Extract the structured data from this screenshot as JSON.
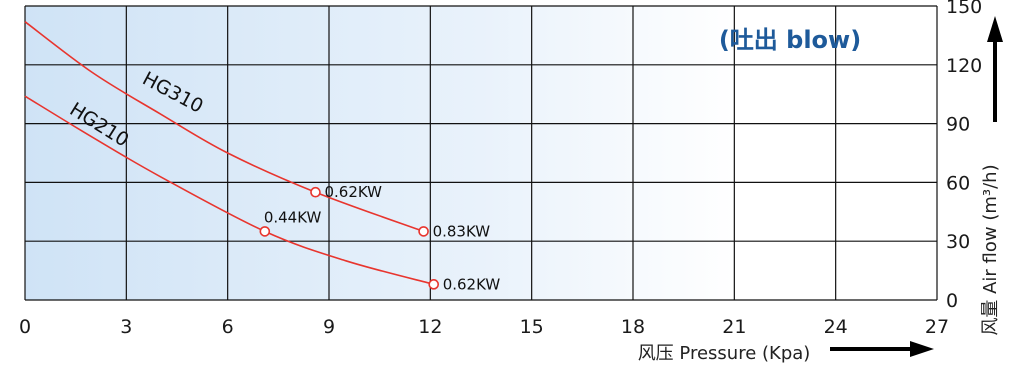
{
  "chart_data": {
    "type": "line",
    "title": "(吐出 blow)",
    "xlabel": "风压 Pressure (Kpa)",
    "ylabel": "风量 Air flow (m³/h)",
    "xlim": [
      0,
      27
    ],
    "ylim": [
      0,
      150
    ],
    "xticks": [
      "0",
      "3",
      "6",
      "9",
      "12",
      "15",
      "18",
      "21",
      "24",
      "27"
    ],
    "yticks": [
      "0",
      "30",
      "60",
      "90",
      "120",
      "150"
    ],
    "grid": true,
    "series": [
      {
        "name": "HG310",
        "color": "#e8352e",
        "x": [
          0,
          2,
          4,
          6,
          8.6,
          11.8
        ],
        "y": [
          142,
          116,
          95,
          75,
          55,
          35
        ],
        "markers": [
          {
            "x": 8.6,
            "y": 55,
            "label": "0.62KW"
          },
          {
            "x": 11.8,
            "y": 35,
            "label": "0.83KW"
          }
        ]
      },
      {
        "name": "HG210",
        "color": "#e8352e",
        "x": [
          0,
          2,
          4,
          7.1,
          9.5,
          12.1
        ],
        "y": [
          104,
          83,
          63,
          35,
          20,
          8
        ],
        "markers": [
          {
            "x": 7.1,
            "y": 35,
            "label": "0.44KW"
          },
          {
            "x": 12.1,
            "y": 8,
            "label": "0.62KW"
          }
        ]
      }
    ]
  }
}
